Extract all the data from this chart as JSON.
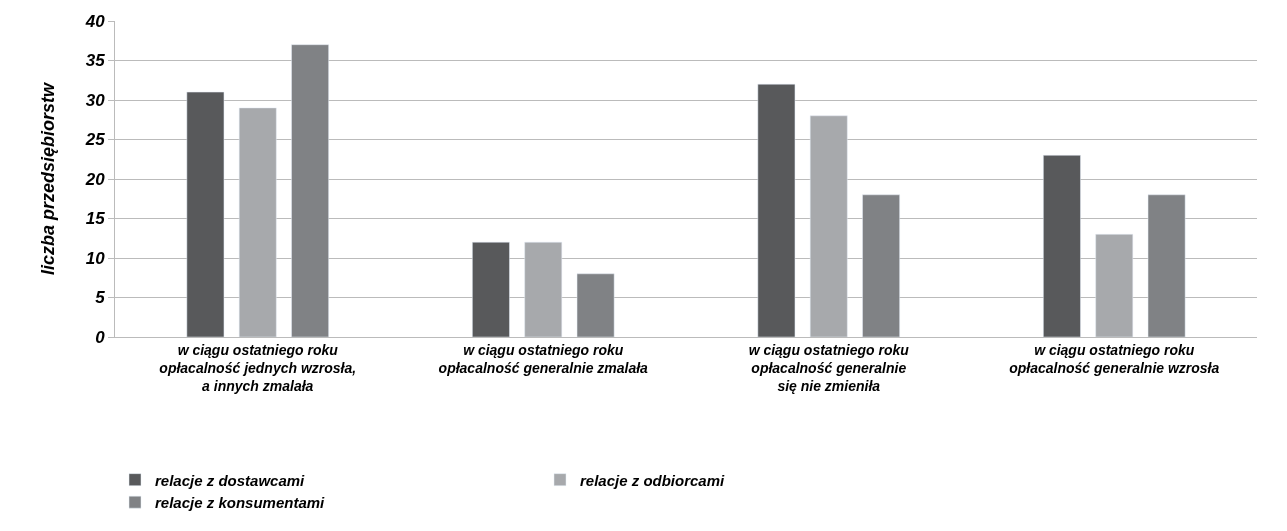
{
  "chart_data": {
    "type": "bar",
    "ylabel": "liczba przedsiębiorstw",
    "categories": [
      "w ciągu ostatniego roku\nopłacalność jednych wzrosła,\na innych zmalała",
      "w ciągu ostatniego roku\nopłacalność generalnie zmalała",
      "w ciągu ostatniego roku\nopłacalność generalnie\nsię nie zmieniła",
      "w ciągu ostatniego roku\nopłacalność generalnie wzrosła"
    ],
    "series": [
      {
        "name": "relacje z dostawcami",
        "color": "#58595b",
        "values": [
          31,
          12,
          32,
          23
        ]
      },
      {
        "name": "relacje z odbiorcami",
        "color": "#a7a9ac",
        "values": [
          29,
          12,
          28,
          13
        ]
      },
      {
        "name": "relacje z konsumentami",
        "color": "#808285",
        "values": [
          37,
          8,
          18,
          18
        ]
      }
    ],
    "ylim": [
      0,
      40
    ],
    "yticks": [
      0,
      5,
      10,
      15,
      20,
      25,
      30,
      35,
      40
    ],
    "grid": "y",
    "legend": "bottom"
  }
}
